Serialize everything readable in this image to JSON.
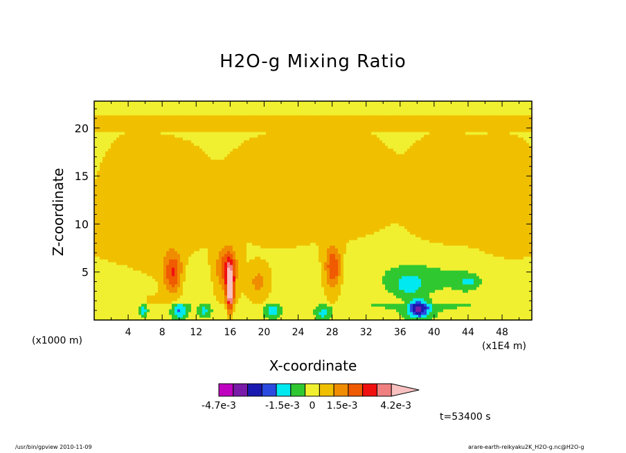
{
  "chart_data": {
    "type": "heatmap",
    "title": "H2O-g Mixing Ratio",
    "xlabel": "X-coordinate",
    "ylabel": "Z-coordinate",
    "x_unit_label": "(x1000 m)",
    "x_scale_label": "(x1E4 m)",
    "xlim": [
      0,
      51.5
    ],
    "ylim": [
      0,
      22.8
    ],
    "x_ticks": [
      "4",
      "8",
      "12",
      "16",
      "20",
      "24",
      "28",
      "32",
      "36",
      "40",
      "44",
      "48"
    ],
    "y_ticks": [
      "5",
      "10",
      "15",
      "20"
    ],
    "colorbar": {
      "colors": [
        "#c000c0",
        "#7a1aa8",
        "#1a1ab0",
        "#2a4ae0",
        "#00e8f0",
        "#30c830",
        "#f0f030",
        "#f0c000",
        "#f08c00",
        "#f05a00",
        "#f01010",
        "#f08080",
        "#f8c0c0"
      ],
      "labels": [
        "-4.7e-3",
        "-1.5e-3",
        "0",
        "1.5e-3",
        "4.2e-3"
      ],
      "label_values": [
        -0.0047,
        -0.0015,
        0,
        0.0015,
        0.0042
      ],
      "range": [
        -0.0047,
        0.0047
      ],
      "extend": "max"
    },
    "background_level": 0.0003,
    "layers": [
      {
        "z": [
          19.7,
          21.5
        ],
        "v": 0.0006
      },
      {
        "z": [
          0.0,
          1.8
        ],
        "v": -0.0002
      }
    ],
    "anomalies": [
      {
        "x": 5,
        "z": 8,
        "sx": 4,
        "sz": 8,
        "v": 0.00055
      },
      {
        "x": 10,
        "z": 12.5,
        "sx": 3,
        "sz": 4,
        "v": 0.00065
      },
      {
        "x": 22,
        "z": 13.5,
        "sx": 5,
        "sz": 4,
        "v": 0.00065
      },
      {
        "x": 30,
        "z": 14,
        "sx": 4,
        "sz": 4,
        "v": 0.0006
      },
      {
        "x": 41,
        "z": 13,
        "sx": 3.5,
        "sz": 4.5,
        "v": 0.0006
      },
      {
        "x": 48,
        "z": 12,
        "sx": 4,
        "sz": 5,
        "v": 0.0006
      },
      {
        "x": 9.3,
        "z": 4.8,
        "sx": 1.1,
        "sz": 2.1,
        "v": 0.0026
      },
      {
        "x": 15.6,
        "z": 5.5,
        "sx": 1.2,
        "sz": 2.2,
        "v": 0.0022
      },
      {
        "x": 16.0,
        "z": 3.2,
        "sx": 0.45,
        "sz": 2.4,
        "v": 0.0045
      },
      {
        "x": 19.3,
        "z": 4.0,
        "sx": 1.0,
        "sz": 1.4,
        "v": 0.0011
      },
      {
        "x": 28.1,
        "z": 5.5,
        "sx": 0.9,
        "sz": 2.2,
        "v": 0.0024
      },
      {
        "x": 3.5,
        "z": 4.0,
        "sx": 3.5,
        "sz": 2.2,
        "v": -0.0007
      },
      {
        "x": 10.5,
        "z": 4.0,
        "sx": 2.5,
        "sz": 2.0,
        "v": -0.0006
      },
      {
        "x": 38.5,
        "z": 4.4,
        "sx": 8.5,
        "sz": 2.6,
        "v": -0.00085
      },
      {
        "x": 37.0,
        "z": 3.7,
        "sx": 1.7,
        "sz": 1.2,
        "v": -0.0012
      },
      {
        "x": 44.0,
        "z": 4.0,
        "sx": 1.4,
        "sz": 0.8,
        "v": -0.0011
      },
      {
        "x": 38.2,
        "z": 1.2,
        "sx": 1.2,
        "sz": 0.9,
        "v": -0.0032
      },
      {
        "x": 10.0,
        "z": 1.0,
        "sx": 0.8,
        "sz": 0.8,
        "v": -0.0018
      },
      {
        "x": 5.8,
        "z": 1.0,
        "sx": 0.5,
        "sz": 0.6,
        "v": -0.0014
      },
      {
        "x": 21.0,
        "z": 1.0,
        "sx": 0.8,
        "sz": 0.7,
        "v": -0.0013
      },
      {
        "x": 27.0,
        "z": 0.8,
        "sx": 0.8,
        "sz": 0.6,
        "v": -0.0013
      },
      {
        "x": 13.0,
        "z": 1.0,
        "sx": 0.6,
        "sz": 0.5,
        "v": -0.0013
      }
    ]
  },
  "time_label": "t=53400 s",
  "footer": {
    "left": "/usr/bin/gpview   2010-11-09",
    "right": "arare-earth-reikyaku2K_H2O-g.nc@H2O-g"
  }
}
